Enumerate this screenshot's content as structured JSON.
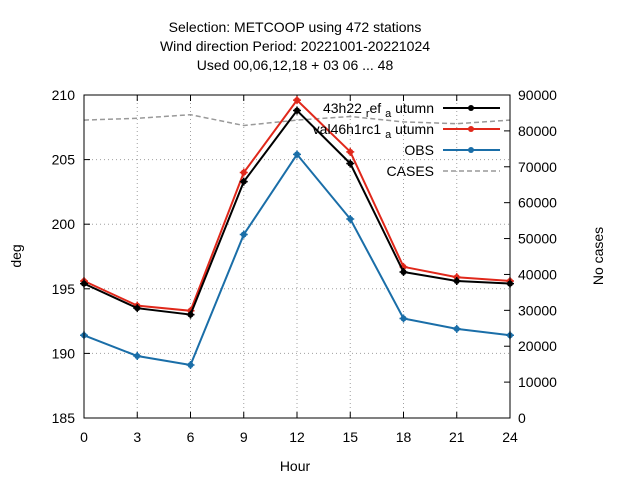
{
  "title_lines": [
    "Selection: METCOOP using   472 stations",
    "Wind direction   Period: 20221001-20221024",
    "Used  00,06,12,18  + 03 06 ... 48"
  ],
  "chart_data": {
    "type": "line",
    "xlabel": "Hour",
    "ylabel": "deg",
    "y2label": "No cases",
    "x": [
      0,
      3,
      6,
      9,
      12,
      15,
      18,
      21,
      24
    ],
    "xlim": [
      0,
      24
    ],
    "ylim": [
      185,
      210
    ],
    "y2lim": [
      0,
      90000
    ],
    "xticks": [
      0,
      3,
      6,
      9,
      12,
      15,
      18,
      21,
      24
    ],
    "yticks": [
      185,
      190,
      195,
      200,
      205,
      210
    ],
    "y2ticks": [
      0,
      10000,
      20000,
      30000,
      40000,
      50000,
      60000,
      70000,
      80000,
      90000
    ],
    "grid": true,
    "legend_position": "top-right",
    "series": [
      {
        "name": "43h22_ref_autumn",
        "label_main": "43h22",
        "label_sub": "r",
        "label_mid": "ef",
        "label_sub2": "a",
        "label_end": "utumn",
        "color": "#000000",
        "axis": "y",
        "style": "solid-point",
        "values": [
          195.4,
          193.5,
          193.0,
          203.3,
          208.8,
          204.7,
          196.3,
          195.6,
          195.4
        ]
      },
      {
        "name": "val46h1rc1_autumn",
        "label_main": "val46h1rc1",
        "label_sub": "a",
        "label_end": "utumn",
        "color": "#e0281b",
        "axis": "y",
        "style": "solid-point",
        "values": [
          195.6,
          193.7,
          193.3,
          204.0,
          209.6,
          205.6,
          196.7,
          195.9,
          195.6
        ]
      },
      {
        "name": "OBS",
        "color": "#1a6ea8",
        "axis": "y",
        "style": "solid-point",
        "values": [
          191.4,
          189.8,
          189.1,
          199.2,
          205.4,
          200.4,
          192.7,
          191.9,
          191.4
        ]
      },
      {
        "name": "CASES",
        "color": "#999999",
        "axis": "y2",
        "style": "dashed",
        "values": [
          83000,
          83500,
          84500,
          81500,
          83000,
          84000,
          82500,
          82000,
          83000
        ]
      }
    ]
  }
}
